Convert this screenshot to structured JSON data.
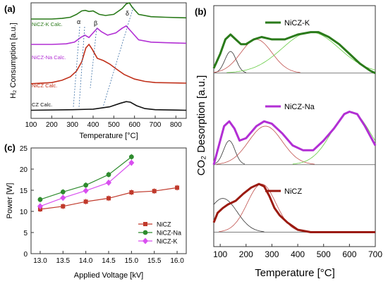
{
  "chart_data": [
    {
      "type": "line",
      "panel_label": "(a)",
      "xlabel": "Temperature [°C]",
      "ylabel": "H₂ Consumption [a.u.]",
      "xlim": [
        100,
        850
      ],
      "x_ticks": [
        100,
        200,
        300,
        400,
        500,
        600,
        700,
        800
      ],
      "series": [
        {
          "name": "NiCZ-K Calc.",
          "color": "#2a7a1a",
          "x": [
            100,
            200,
            250,
            290,
            320,
            345,
            362,
            380,
            400,
            430,
            460,
            500,
            540,
            560,
            575,
            590,
            620,
            680,
            750,
            850
          ],
          "y": [
            0.86,
            0.86,
            0.865,
            0.875,
            0.9,
            0.93,
            0.935,
            0.925,
            0.93,
            0.9,
            0.89,
            0.9,
            0.95,
            0.99,
            1.0,
            0.96,
            0.9,
            0.88,
            0.875,
            0.87
          ]
        },
        {
          "name": "NiCZ-Na Calc.",
          "color": "#b22fd4",
          "x": [
            100,
            200,
            270,
            310,
            340,
            360,
            380,
            400,
            420,
            440,
            470,
            510,
            540,
            560,
            580,
            620,
            680,
            750,
            850
          ],
          "y": [
            0.64,
            0.64,
            0.645,
            0.66,
            0.7,
            0.72,
            0.7,
            0.74,
            0.78,
            0.75,
            0.72,
            0.74,
            0.78,
            0.8,
            0.76,
            0.68,
            0.66,
            0.655,
            0.65
          ]
        },
        {
          "name": "NiCZ Calc.",
          "color": "#c0301a",
          "x": [
            100,
            200,
            250,
            290,
            320,
            345,
            365,
            380,
            395,
            420,
            450,
            480,
            510,
            550,
            600,
            650,
            700,
            850
          ],
          "y": [
            0.3,
            0.31,
            0.33,
            0.36,
            0.41,
            0.49,
            0.61,
            0.64,
            0.6,
            0.52,
            0.5,
            0.47,
            0.43,
            0.38,
            0.34,
            0.32,
            0.31,
            0.305
          ]
        },
        {
          "name": "CZ Calc.",
          "color": "#111111",
          "x": [
            100,
            300,
            400,
            480,
            530,
            560,
            580,
            610,
            650,
            700,
            850
          ],
          "y": [
            0.07,
            0.075,
            0.08,
            0.1,
            0.13,
            0.145,
            0.14,
            0.11,
            0.085,
            0.075,
            0.07
          ]
        }
      ],
      "annotations": [
        "α",
        "β",
        "δ"
      ]
    },
    {
      "type": "line",
      "panel_label": "(b)",
      "xlabel": "Temperature [°C]",
      "ylabel": "CO₂ Desorption [a.u.]",
      "xlim": [
        75,
        700
      ],
      "x_ticks": [
        100,
        200,
        300,
        400,
        500,
        600,
        700
      ],
      "series": [
        {
          "name": "NiCZ-K",
          "color": "#2a7a1a",
          "x": [
            75,
            100,
            120,
            140,
            160,
            180,
            200,
            230,
            260,
            300,
            350,
            400,
            450,
            480,
            520,
            560,
            600,
            640,
            680,
            700
          ],
          "y": [
            0.74,
            0.8,
            0.86,
            0.88,
            0.86,
            0.84,
            0.84,
            0.86,
            0.87,
            0.86,
            0.86,
            0.88,
            0.89,
            0.89,
            0.87,
            0.84,
            0.8,
            0.76,
            0.73,
            0.72
          ]
        },
        {
          "name": "NiCZ-Na",
          "color": "#b22fd4",
          "x": [
            75,
            95,
            115,
            135,
            155,
            175,
            200,
            240,
            270,
            300,
            340,
            380,
            420,
            460,
            500,
            540,
            580,
            600,
            630,
            660,
            690,
            700
          ],
          "y": [
            0.34,
            0.42,
            0.5,
            0.52,
            0.49,
            0.44,
            0.45,
            0.5,
            0.52,
            0.51,
            0.47,
            0.42,
            0.4,
            0.4,
            0.44,
            0.49,
            0.55,
            0.56,
            0.55,
            0.5,
            0.44,
            0.42
          ]
        },
        {
          "name": "NiCZ",
          "color": "#9b1a10",
          "x": [
            75,
            90,
            110,
            130,
            160,
            190,
            220,
            250,
            270,
            290,
            310,
            330,
            360,
            400,
            450,
            500,
            600,
            700
          ],
          "y": [
            0.1,
            0.14,
            0.16,
            0.175,
            0.19,
            0.22,
            0.245,
            0.26,
            0.25,
            0.21,
            0.16,
            0.13,
            0.1,
            0.07,
            0.06,
            0.06,
            0.06,
            0.06
          ]
        }
      ]
    },
    {
      "type": "line",
      "panel_label": "(c)",
      "xlabel": "Applied Voltage [kV]",
      "ylabel": "Power [W]",
      "xlim": [
        12.8,
        16.2
      ],
      "ylim": [
        0,
        25
      ],
      "x_ticks": [
        "13.0",
        "13.5",
        "14.0",
        "14.5",
        "15.0",
        "15.5",
        "16.0"
      ],
      "y_ticks": [
        0,
        5,
        10,
        15,
        20,
        25
      ],
      "legend_position": "bottom-right",
      "series": [
        {
          "name": "NiCZ",
          "color": "#c0392b",
          "marker": "square",
          "x": [
            13.0,
            13.5,
            14.0,
            14.5,
            15.0,
            15.5,
            16.0
          ],
          "values": [
            10.5,
            11.2,
            12.3,
            13.1,
            14.5,
            14.8,
            15.6
          ]
        },
        {
          "name": "NiCZ-Na",
          "color": "#2e8b2e",
          "marker": "circle",
          "x": [
            13.0,
            13.5,
            14.0,
            14.5,
            15.0
          ],
          "values": [
            12.8,
            14.6,
            16.2,
            18.7,
            22.9
          ]
        },
        {
          "name": "NiCZ-K",
          "color": "#d94ff0",
          "marker": "diamond",
          "x": [
            13.0,
            13.5,
            14.0,
            14.5,
            15.0
          ],
          "values": [
            11.2,
            13.2,
            14.9,
            16.8,
            21.5
          ]
        }
      ]
    }
  ]
}
